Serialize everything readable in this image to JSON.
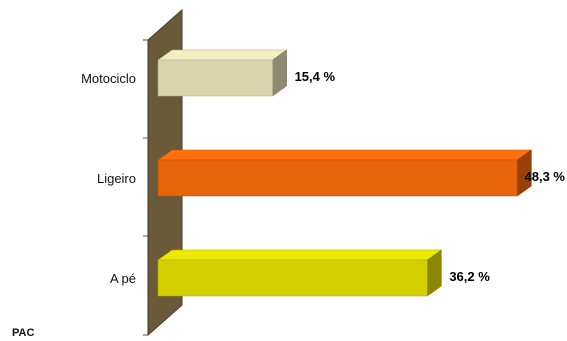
{
  "chart_data": {
    "type": "bar",
    "orientation": "horizontal",
    "categories": [
      "Motociclo",
      "Ligeiro",
      "A pé"
    ],
    "values": [
      15.4,
      48.3,
      36.2
    ],
    "value_labels": [
      "15,4 %",
      "48,3 %",
      "36,2 %"
    ],
    "colors": [
      "#d9d4ad",
      "#e8630a",
      "#d4d000"
    ],
    "xlim": [
      0,
      50
    ],
    "grid": false,
    "legend": "none",
    "style": "3d"
  },
  "footer": {
    "text": "PAC"
  }
}
